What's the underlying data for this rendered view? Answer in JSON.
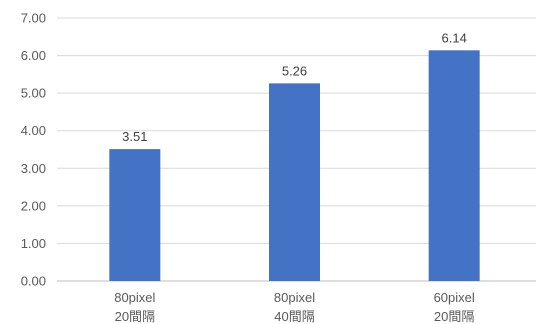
{
  "chart_data": {
    "type": "bar",
    "categories": [
      [
        "80pixel",
        "20間隔"
      ],
      [
        "80pixel",
        "40間隔"
      ],
      [
        "60pixel",
        "20間隔"
      ]
    ],
    "values": [
      3.51,
      5.26,
      6.14
    ],
    "data_labels": [
      "3.51",
      "5.26",
      "6.14"
    ],
    "y_ticks": [
      "0.00",
      "1.00",
      "2.00",
      "3.00",
      "4.00",
      "5.00",
      "6.00",
      "7.00"
    ],
    "ylim": [
      0,
      7
    ],
    "grid": true,
    "bar_color": "#4472c4",
    "legend": "none"
  }
}
